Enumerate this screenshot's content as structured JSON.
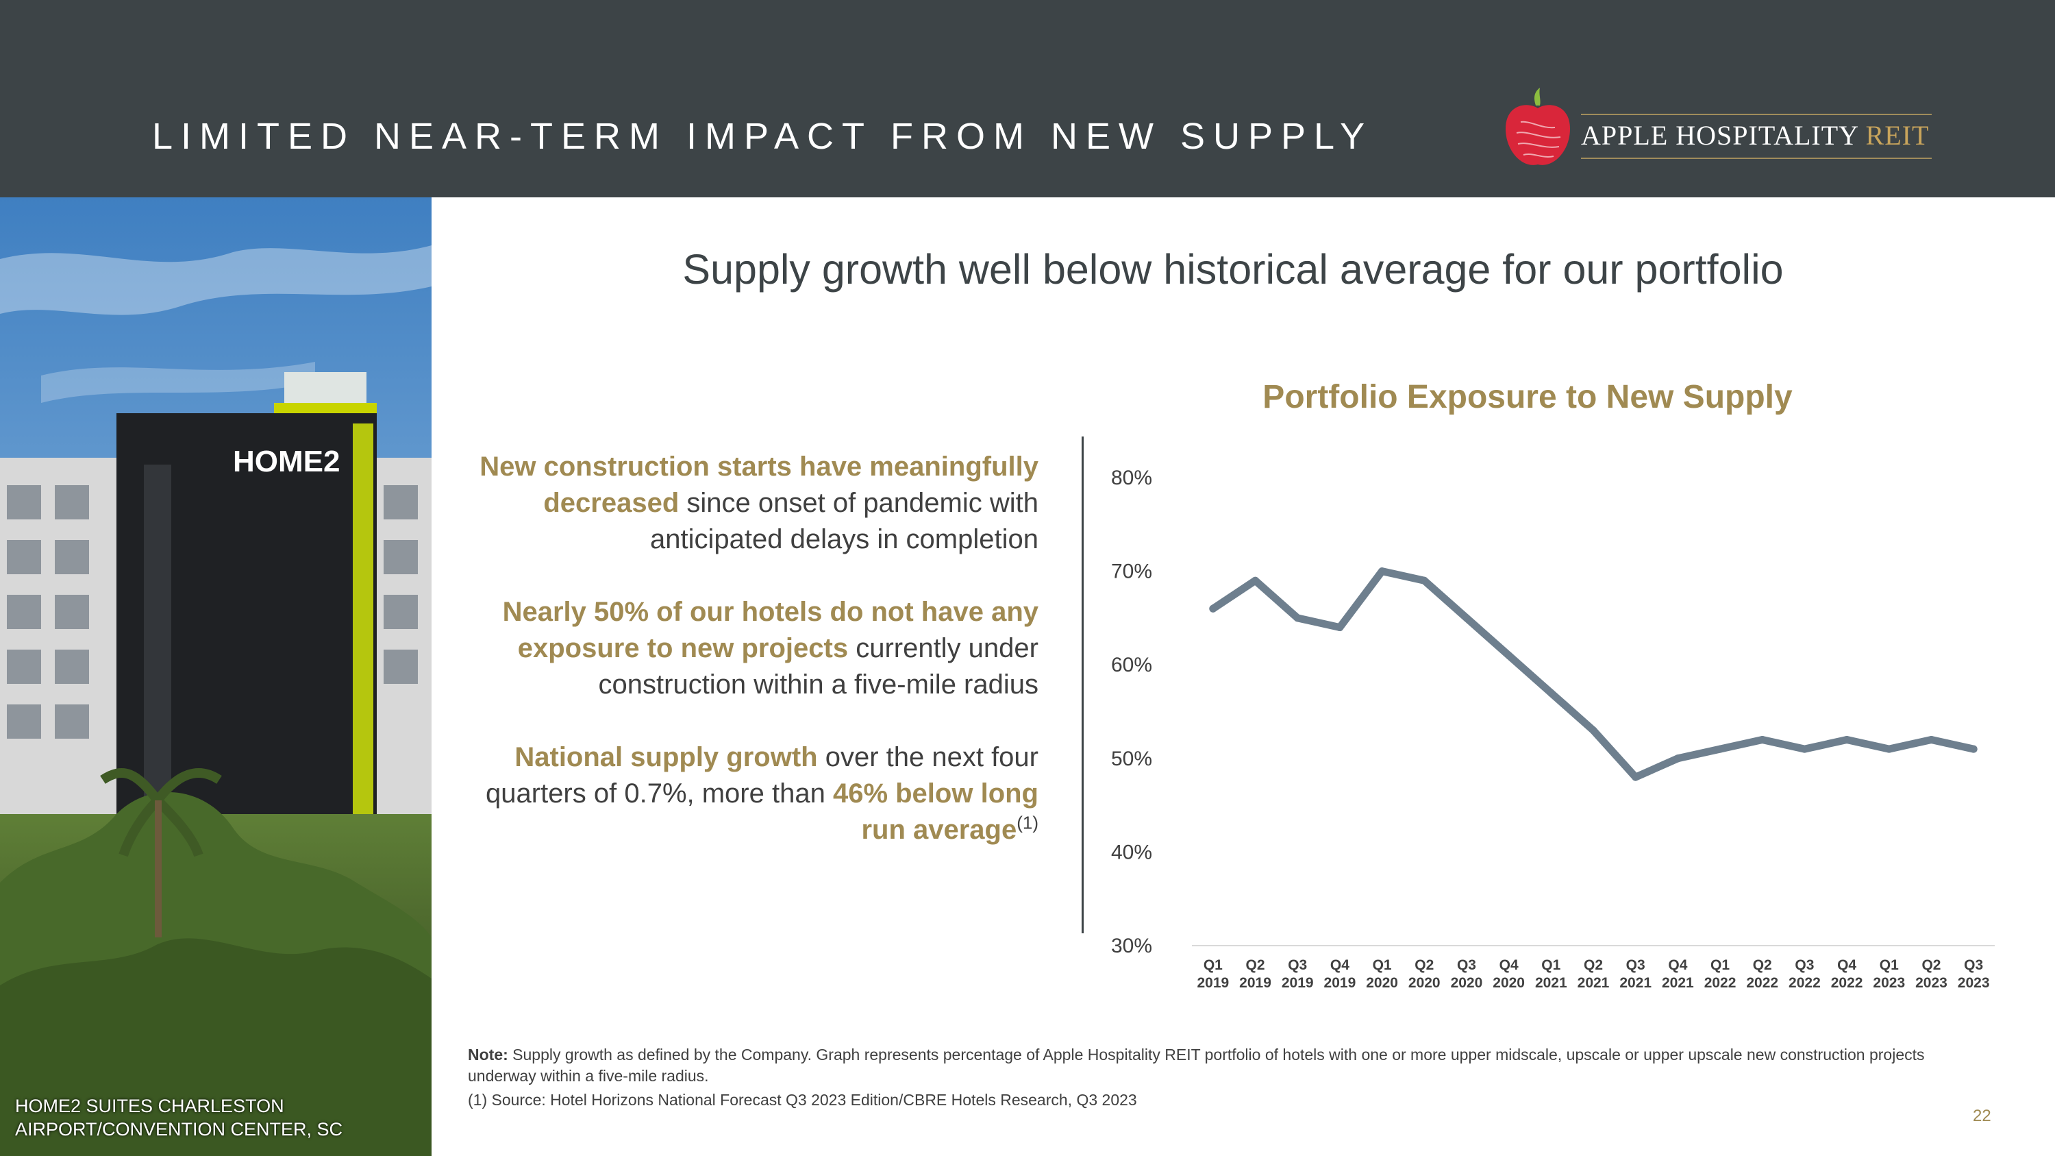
{
  "header": {
    "title": "LIMITED NEAR-TERM IMPACT FROM NEW SUPPLY",
    "logo_name": "APPLE HOSPITALITY",
    "logo_reit": "REIT",
    "logo_icon": "apple-icon",
    "colors": {
      "background": "#3d4447",
      "accent": "#c9a55c",
      "apple_red": "#d9263a",
      "leaf": "#8cbd3f"
    }
  },
  "photo": {
    "sign_text": "HOME2",
    "caption_line1": "HOME2 SUITES CHARLESTON",
    "caption_line2": "AIRPORT/CONVENTION CENTER, SC"
  },
  "subtitle": "Supply growth well below historical average for our portfolio",
  "bullets": [
    {
      "hl": "New construction starts have meaningfully decreased",
      "text": " since onset of pandemic with anticipated delays in completion"
    },
    {
      "hl": "Nearly 50% of our hotels do not have any exposure to new projects",
      "text": " currently under construction within a five-mile radius"
    },
    {
      "hl_a": "National supply growth",
      "text": " over the next four quarters of 0.7%, more than ",
      "hl_b": "46% below long run average",
      "sup": "(1)"
    }
  ],
  "chart_data": {
    "type": "line",
    "title": "Portfolio Exposure to New Supply",
    "categories": [
      [
        "Q1",
        "2019"
      ],
      [
        "Q2",
        "2019"
      ],
      [
        "Q3",
        "2019"
      ],
      [
        "Q4",
        "2019"
      ],
      [
        "Q1",
        "2020"
      ],
      [
        "Q2",
        "2020"
      ],
      [
        "Q3",
        "2020"
      ],
      [
        "Q4",
        "2020"
      ],
      [
        "Q1",
        "2021"
      ],
      [
        "Q2",
        "2021"
      ],
      [
        "Q3",
        "2021"
      ],
      [
        "Q4",
        "2021"
      ],
      [
        "Q1",
        "2022"
      ],
      [
        "Q2",
        "2022"
      ],
      [
        "Q3",
        "2022"
      ],
      [
        "Q4",
        "2022"
      ],
      [
        "Q1",
        "2023"
      ],
      [
        "Q2",
        "2023"
      ],
      [
        "Q3",
        "2023"
      ]
    ],
    "series": [
      {
        "name": "Portfolio exposure",
        "values": [
          66,
          69,
          65,
          64,
          70,
          69,
          65,
          61,
          57,
          53,
          48,
          50,
          51,
          52,
          51,
          52,
          51,
          52,
          51
        ],
        "color": "#6e7f8e"
      }
    ],
    "ylim": [
      30,
      80
    ],
    "yticks": [
      30,
      40,
      50,
      60,
      70,
      80
    ],
    "ytick_labels": [
      "30%",
      "40%",
      "50%",
      "60%",
      "70%",
      "80%"
    ],
    "xlabel": "",
    "ylabel": "",
    "grid": false
  },
  "notes": {
    "label": "Note:",
    "text": " Supply growth as defined by the Company. Graph represents percentage of Apple Hospitality REIT portfolio of hotels with one or more upper midscale, upscale or upper upscale new construction projects underway within a five-mile radius.",
    "source": "(1) Source: Hotel Horizons National Forecast Q3 2023 Edition/CBRE Hotels Research, Q3 2023"
  },
  "page_number": "22"
}
